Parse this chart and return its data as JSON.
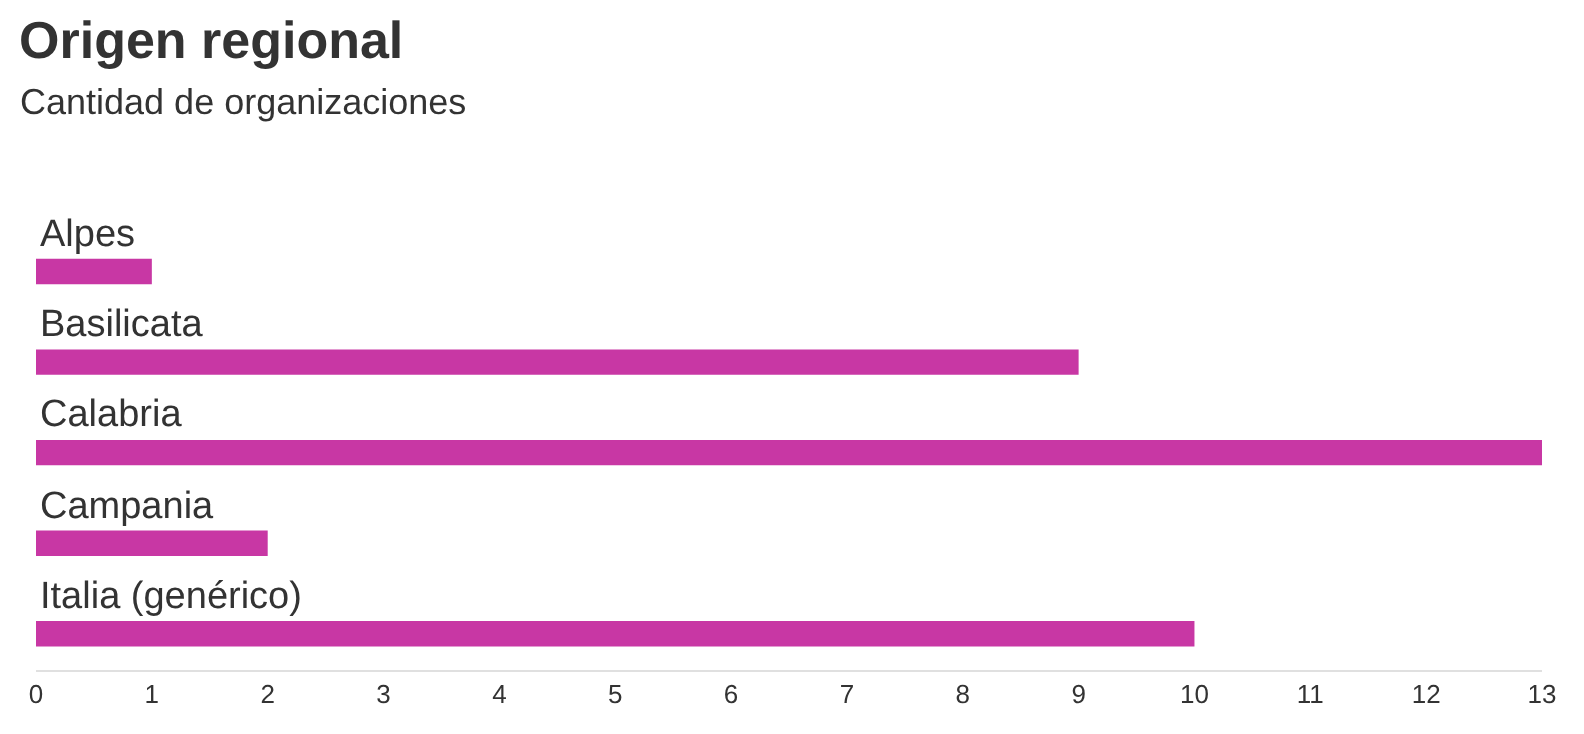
{
  "chart_data": {
    "type": "bar",
    "orientation": "horizontal",
    "title": "Origen regional",
    "subtitle": "Cantidad de organizaciones",
    "categories": [
      "Alpes",
      "Basilicata",
      "Calabria",
      "Campania",
      "Italia (genérico)"
    ],
    "values": [
      1,
      9,
      13,
      2,
      10
    ],
    "color": "#c837a4",
    "xlim": [
      0,
      13
    ],
    "xticks": [
      0,
      1,
      2,
      3,
      4,
      5,
      6,
      7,
      8,
      9,
      10,
      11,
      12,
      13
    ]
  }
}
